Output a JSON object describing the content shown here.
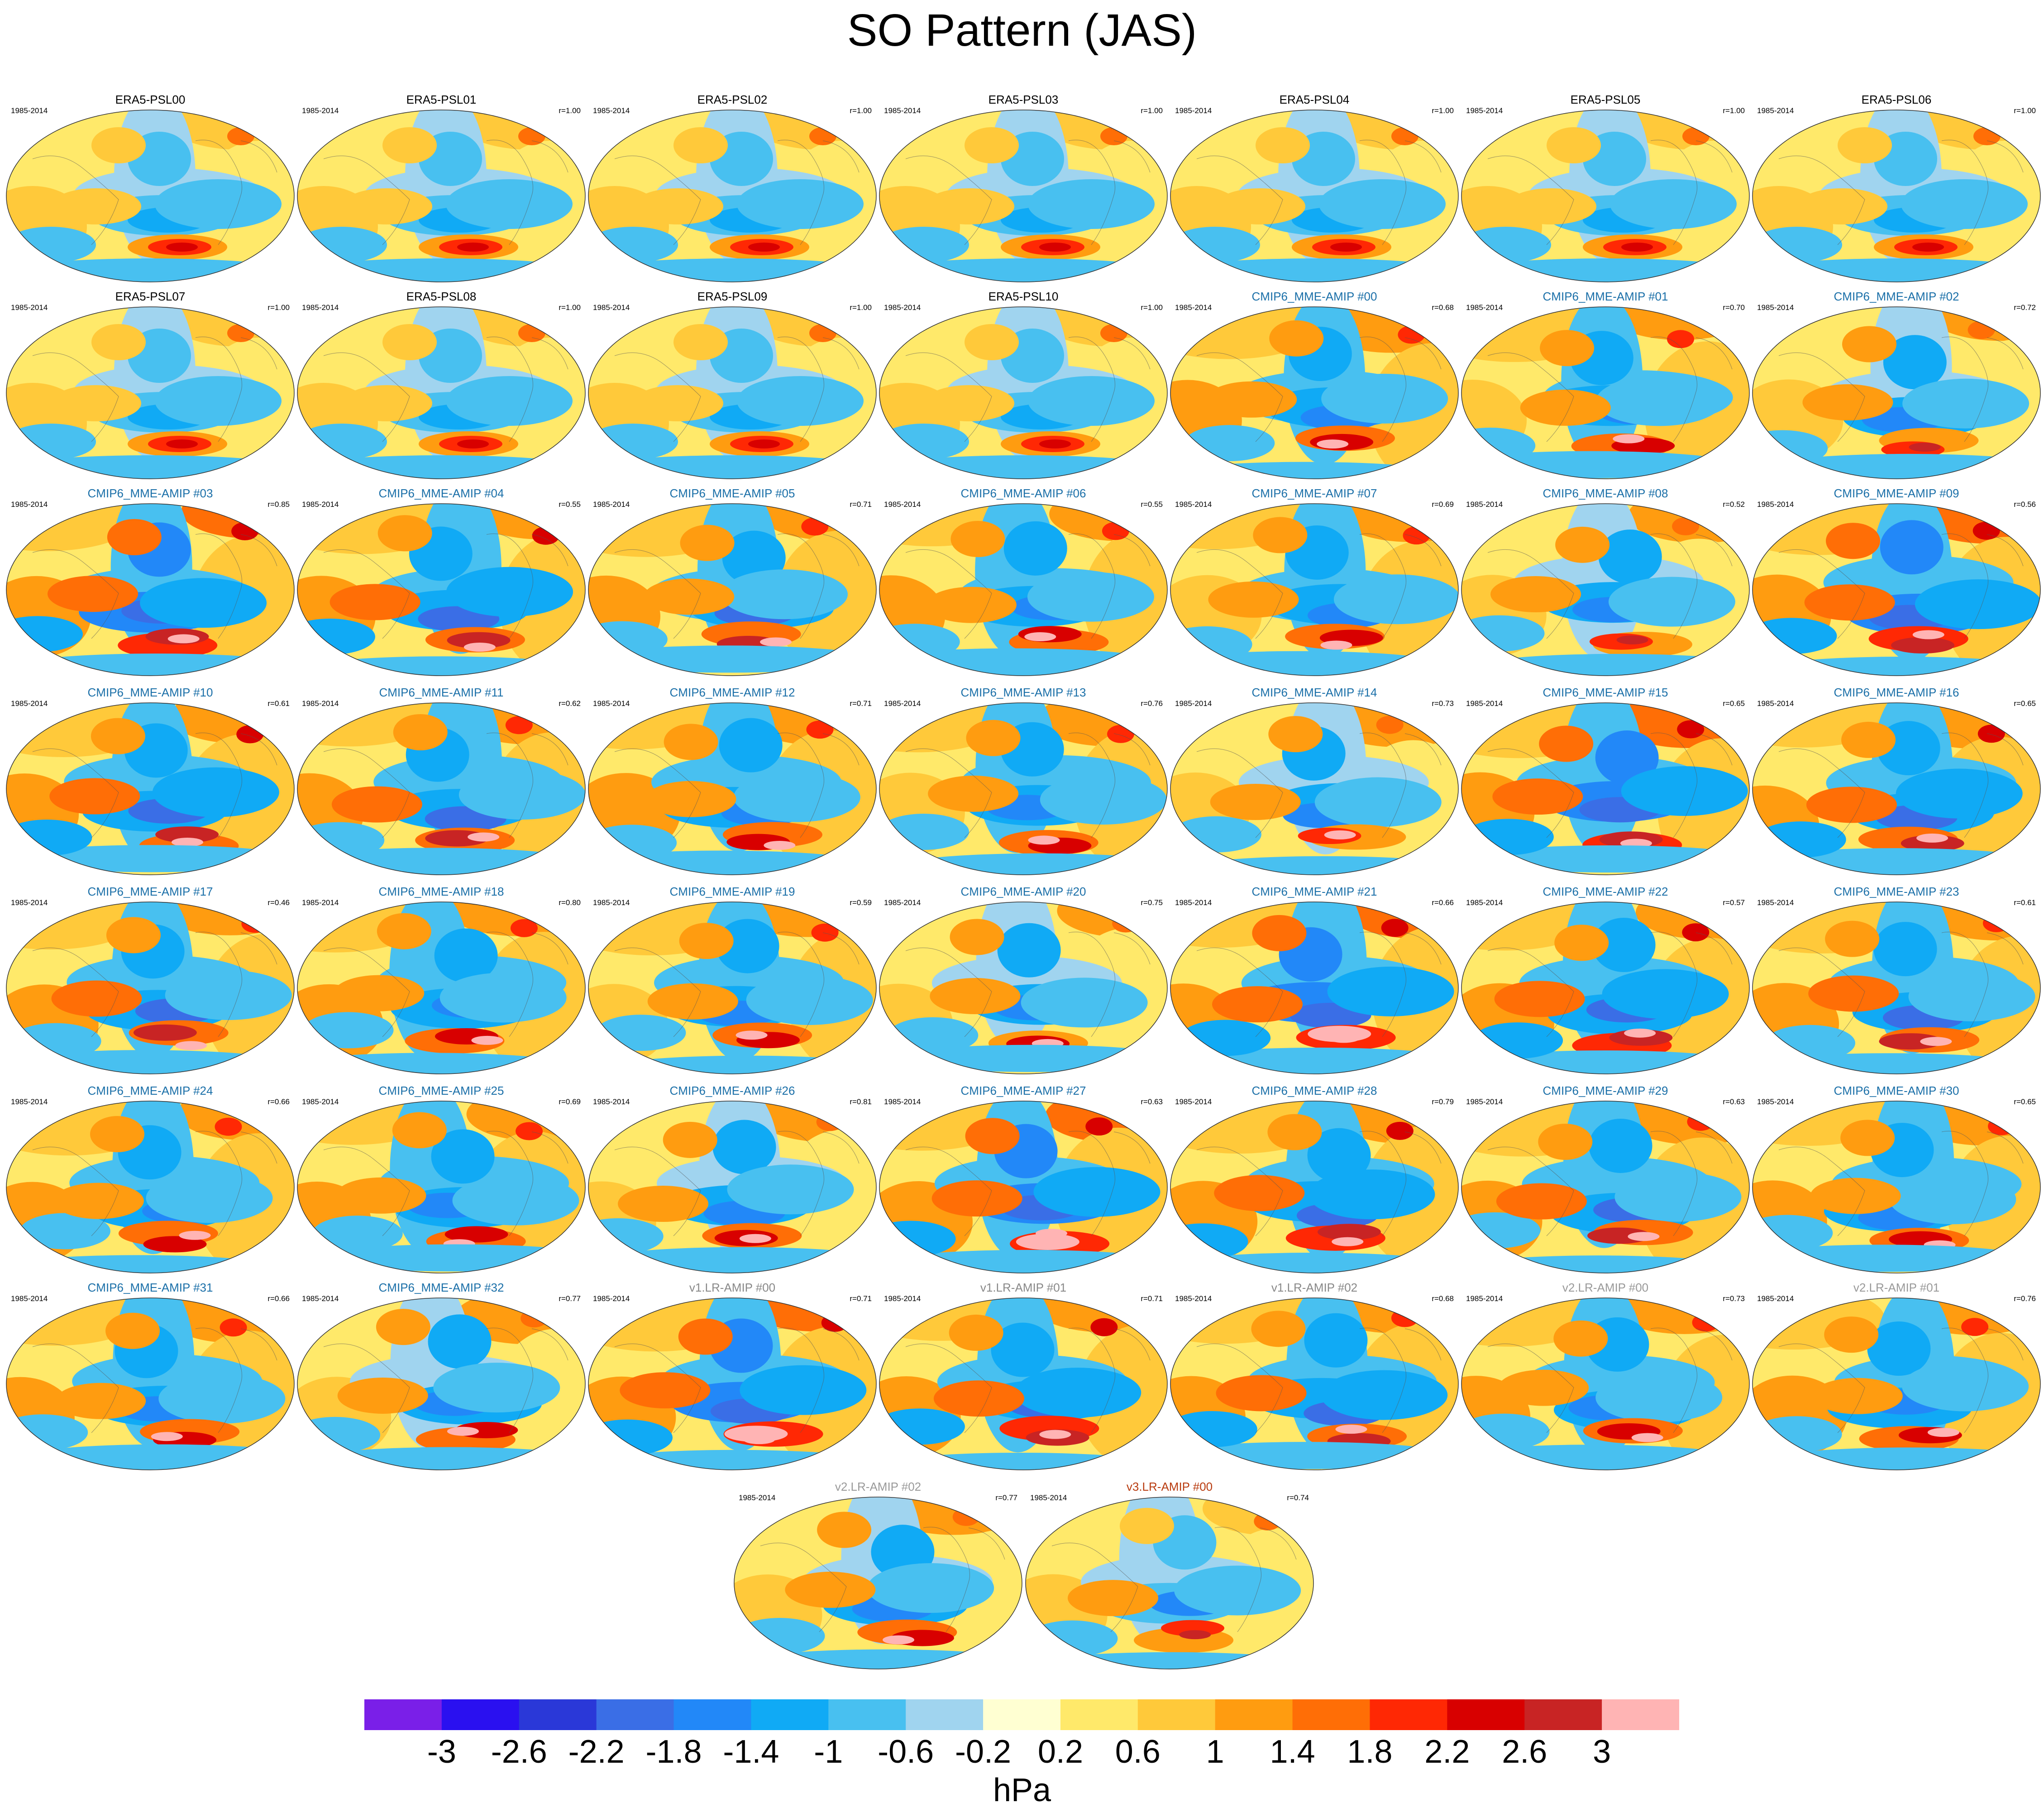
{
  "title": "SO Pattern (JAS)",
  "chart_data": {
    "type": "heatmap",
    "title": "SO Pattern (JAS)",
    "projection": "global map panels",
    "period": "1985-2014",
    "colorbar": {
      "unit": "hPa",
      "tick_labels": [
        "-3",
        "-2.6",
        "-2.2",
        "-1.8",
        "-1.4",
        "-1",
        "-0.6",
        "-0.2",
        "0.2",
        "0.6",
        "1",
        "1.4",
        "1.8",
        "2.2",
        "2.6",
        "3"
      ],
      "colors": [
        "#7a1fe8",
        "#2a10f0",
        "#2a38d8",
        "#3a6ee6",
        "#2288f8",
        "#10aaf5",
        "#48c0f0",
        "#a0d4ef",
        "#ffffd2",
        "#ffe96a",
        "#ffc93a",
        "#ff9c10",
        "#ff6e06",
        "#ff2804",
        "#d80000",
        "#c82424",
        "#ffb4b4"
      ]
    },
    "panels": [
      {
        "label": "ERA5-PSL00",
        "years": "1985-2014",
        "corr": "",
        "group": "era5"
      },
      {
        "label": "ERA5-PSL01",
        "years": "1985-2014",
        "corr": "r=1.00",
        "group": "era5"
      },
      {
        "label": "ERA5-PSL02",
        "years": "1985-2014",
        "corr": "r=1.00",
        "group": "era5"
      },
      {
        "label": "ERA5-PSL03",
        "years": "1985-2014",
        "corr": "r=1.00",
        "group": "era5"
      },
      {
        "label": "ERA5-PSL04",
        "years": "1985-2014",
        "corr": "r=1.00",
        "group": "era5"
      },
      {
        "label": "ERA5-PSL05",
        "years": "1985-2014",
        "corr": "r=1.00",
        "group": "era5"
      },
      {
        "label": "ERA5-PSL06",
        "years": "1985-2014",
        "corr": "r=1.00",
        "group": "era5"
      },
      {
        "label": "ERA5-PSL07",
        "years": "1985-2014",
        "corr": "r=1.00",
        "group": "era5"
      },
      {
        "label": "ERA5-PSL08",
        "years": "1985-2014",
        "corr": "r=1.00",
        "group": "era5"
      },
      {
        "label": "ERA5-PSL09",
        "years": "1985-2014",
        "corr": "r=1.00",
        "group": "era5"
      },
      {
        "label": "ERA5-PSL10",
        "years": "1985-2014",
        "corr": "r=1.00",
        "group": "era5"
      },
      {
        "label": "CMIP6_MME-AMIP  #00",
        "years": "1985-2014",
        "corr": "r=0.68",
        "group": "cmip6"
      },
      {
        "label": "CMIP6_MME-AMIP  #01",
        "years": "1985-2014",
        "corr": "r=0.70",
        "group": "cmip6"
      },
      {
        "label": "CMIP6_MME-AMIP  #02",
        "years": "1985-2014",
        "corr": "r=0.72",
        "group": "cmip6"
      },
      {
        "label": "CMIP6_MME-AMIP  #03",
        "years": "1985-2014",
        "corr": "r=0.85",
        "group": "cmip6"
      },
      {
        "label": "CMIP6_MME-AMIP  #04",
        "years": "1985-2014",
        "corr": "r=0.55",
        "group": "cmip6"
      },
      {
        "label": "CMIP6_MME-AMIP  #05",
        "years": "1985-2014",
        "corr": "r=0.71",
        "group": "cmip6"
      },
      {
        "label": "CMIP6_MME-AMIP  #06",
        "years": "1985-2014",
        "corr": "r=0.55",
        "group": "cmip6"
      },
      {
        "label": "CMIP6_MME-AMIP  #07",
        "years": "1985-2014",
        "corr": "r=0.69",
        "group": "cmip6"
      },
      {
        "label": "CMIP6_MME-AMIP  #08",
        "years": "1985-2014",
        "corr": "r=0.52",
        "group": "cmip6"
      },
      {
        "label": "CMIP6_MME-AMIP  #09",
        "years": "1985-2014",
        "corr": "r=0.56",
        "group": "cmip6"
      },
      {
        "label": "CMIP6_MME-AMIP  #10",
        "years": "1985-2014",
        "corr": "r=0.61",
        "group": "cmip6"
      },
      {
        "label": "CMIP6_MME-AMIP  #11",
        "years": "1985-2014",
        "corr": "r=0.62",
        "group": "cmip6"
      },
      {
        "label": "CMIP6_MME-AMIP  #12",
        "years": "1985-2014",
        "corr": "r=0.71",
        "group": "cmip6"
      },
      {
        "label": "CMIP6_MME-AMIP  #13",
        "years": "1985-2014",
        "corr": "r=0.76",
        "group": "cmip6"
      },
      {
        "label": "CMIP6_MME-AMIP  #14",
        "years": "1985-2014",
        "corr": "r=0.73",
        "group": "cmip6"
      },
      {
        "label": "CMIP6_MME-AMIP  #15",
        "years": "1985-2014",
        "corr": "r=0.65",
        "group": "cmip6"
      },
      {
        "label": "CMIP6_MME-AMIP  #16",
        "years": "1985-2014",
        "corr": "r=0.65",
        "group": "cmip6"
      },
      {
        "label": "CMIP6_MME-AMIP  #17",
        "years": "1985-2014",
        "corr": "r=0.46",
        "group": "cmip6"
      },
      {
        "label": "CMIP6_MME-AMIP  #18",
        "years": "1985-2014",
        "corr": "r=0.80",
        "group": "cmip6"
      },
      {
        "label": "CMIP6_MME-AMIP  #19",
        "years": "1985-2014",
        "corr": "r=0.59",
        "group": "cmip6"
      },
      {
        "label": "CMIP6_MME-AMIP  #20",
        "years": "1985-2014",
        "corr": "r=0.75",
        "group": "cmip6"
      },
      {
        "label": "CMIP6_MME-AMIP  #21",
        "years": "1985-2014",
        "corr": "r=0.66",
        "group": "cmip6"
      },
      {
        "label": "CMIP6_MME-AMIP  #22",
        "years": "1985-2014",
        "corr": "r=0.57",
        "group": "cmip6"
      },
      {
        "label": "CMIP6_MME-AMIP  #23",
        "years": "1985-2014",
        "corr": "r=0.61",
        "group": "cmip6"
      },
      {
        "label": "CMIP6_MME-AMIP  #24",
        "years": "1985-2014",
        "corr": "r=0.66",
        "group": "cmip6"
      },
      {
        "label": "CMIP6_MME-AMIP  #25",
        "years": "1985-2014",
        "corr": "r=0.69",
        "group": "cmip6"
      },
      {
        "label": "CMIP6_MME-AMIP  #26",
        "years": "1985-2014",
        "corr": "r=0.81",
        "group": "cmip6"
      },
      {
        "label": "CMIP6_MME-AMIP  #27",
        "years": "1985-2014",
        "corr": "r=0.63",
        "group": "cmip6"
      },
      {
        "label": "CMIP6_MME-AMIP  #28",
        "years": "1985-2014",
        "corr": "r=0.79",
        "group": "cmip6"
      },
      {
        "label": "CMIP6_MME-AMIP  #29",
        "years": "1985-2014",
        "corr": "r=0.63",
        "group": "cmip6"
      },
      {
        "label": "CMIP6_MME-AMIP  #30",
        "years": "1985-2014",
        "corr": "r=0.65",
        "group": "cmip6"
      },
      {
        "label": "CMIP6_MME-AMIP  #31",
        "years": "1985-2014",
        "corr": "r=0.66",
        "group": "cmip6"
      },
      {
        "label": "CMIP6_MME-AMIP  #32",
        "years": "1985-2014",
        "corr": "r=0.77",
        "group": "cmip6"
      },
      {
        "label": "v1.LR-AMIP  #00",
        "years": "1985-2014",
        "corr": "r=0.71",
        "group": "v1"
      },
      {
        "label": "v1.LR-AMIP  #01",
        "years": "1985-2014",
        "corr": "r=0.71",
        "group": "v1"
      },
      {
        "label": "v1.LR-AMIP  #02",
        "years": "1985-2014",
        "corr": "r=0.68",
        "group": "v1"
      },
      {
        "label": "v2.LR-AMIP  #00",
        "years": "1985-2014",
        "corr": "r=0.73",
        "group": "v2"
      },
      {
        "label": "v2.LR-AMIP  #01",
        "years": "1985-2014",
        "corr": "r=0.76",
        "group": "v2"
      },
      {
        "label": "v2.LR-AMIP  #02",
        "years": "1985-2014",
        "corr": "r=0.77",
        "group": "v2"
      },
      {
        "label": "v3.LR-AMIP  #00",
        "years": "1985-2014",
        "corr": "r=0.74",
        "group": "v3"
      }
    ]
  },
  "colors": {
    "era5_title": "#000000",
    "cmip6_title": "#1a6fa8",
    "v1_title": "#888888",
    "v2_title": "#999999",
    "v3_title": "#b83a0e"
  }
}
